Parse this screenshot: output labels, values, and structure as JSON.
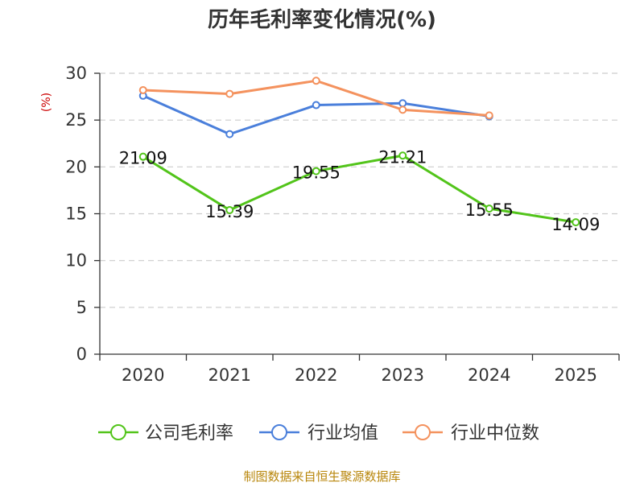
{
  "chart_data": {
    "type": "line",
    "title": "历年毛利率变化情况(%)",
    "unit_label": "(%)",
    "categories": [
      "2020",
      "2021",
      "2022",
      "2023",
      "2024",
      "2025"
    ],
    "ylim": [
      0,
      30
    ],
    "yticks": [
      0,
      5,
      10,
      15,
      20,
      25,
      30
    ],
    "grid": "horizontal-dashed",
    "legend_position": "bottom",
    "series": [
      {
        "name": "公司毛利率",
        "color": "#52c41a",
        "values": [
          21.09,
          15.39,
          19.55,
          21.21,
          15.55,
          14.09
        ],
        "labels": [
          "21.09",
          "15.39",
          "19.55",
          "21.21",
          "15.55",
          "14.09"
        ]
      },
      {
        "name": "行业均值",
        "color": "#4a7fdb",
        "values": [
          27.6,
          23.5,
          26.6,
          26.8,
          25.4,
          null
        ]
      },
      {
        "name": "行业中位数",
        "color": "#f4925e",
        "values": [
          28.2,
          27.8,
          29.2,
          26.1,
          25.5,
          null
        ]
      }
    ],
    "source": "制图数据来自恒生聚源数据库"
  }
}
